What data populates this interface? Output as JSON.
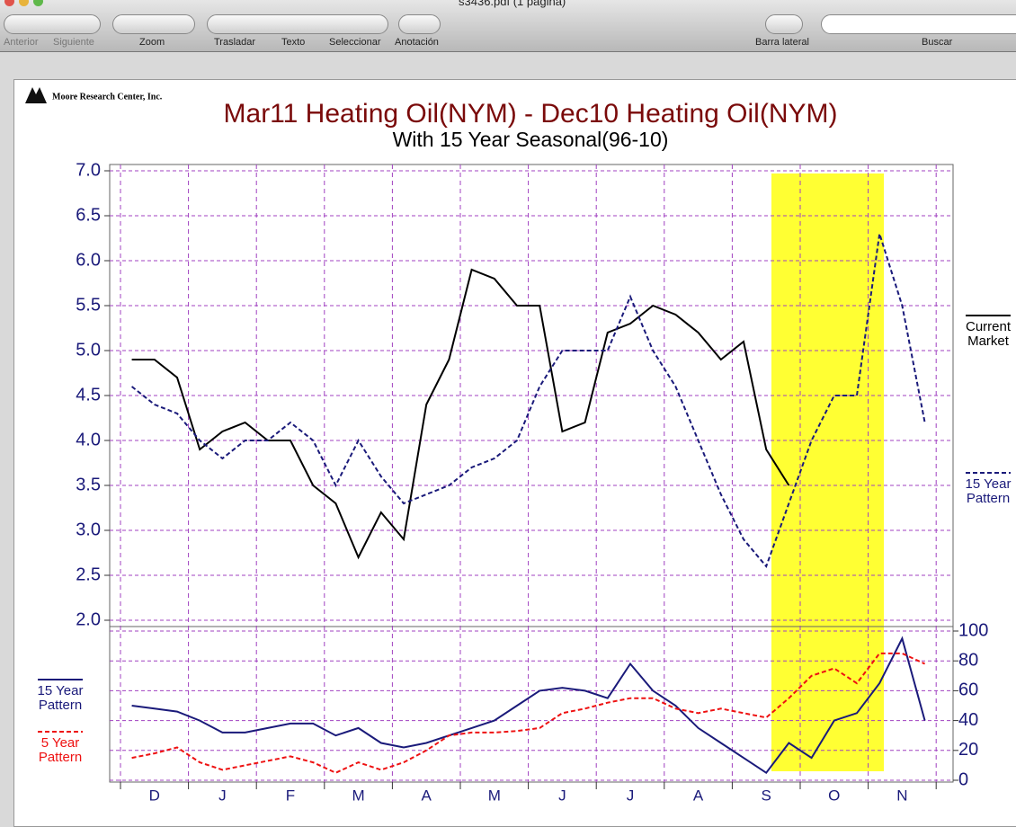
{
  "window": {
    "title": "s3436.pdf (1 página)",
    "toolbar": [
      "Anterior",
      "Siguiente",
      "Zoom",
      "Trasladar",
      "Texto",
      "Seleccionar",
      "Anotación",
      "Barra lateral",
      "Buscar"
    ]
  },
  "logo": "Moore Research Center, Inc.",
  "chart_data": [
    {
      "type": "line",
      "title": "Mar11 Heating Oil(NYM) - Dec10 Heating Oil(NYM)",
      "subtitle": "With 15 Year Seasonal(96-10)",
      "legend": "right",
      "grid": true,
      "ylim": [
        1.9,
        7.1
      ],
      "yticks": [
        {
          "value": 2,
          "label": "2.0"
        },
        2.5,
        {
          "value": 3,
          "label": "3.0"
        },
        3.5,
        {
          "value": 4,
          "label": "4.0"
        },
        4.5,
        {
          "value": 5,
          "label": "5.0"
        },
        5.5,
        {
          "value": 6,
          "label": "6.0"
        },
        6.5,
        {
          "value": 7,
          "label": "7.0"
        }
      ],
      "series": [
        {
          "name": "Current Market",
          "color": "#000000",
          "dash": false,
          "values": [
            4.9,
            4.9,
            4.7,
            3.9,
            4.1,
            4.2,
            4.0,
            4.0,
            3.5,
            3.3,
            2.7,
            3.2,
            2.9,
            4.4,
            4.9,
            5.9,
            5.8,
            5.5,
            5.5,
            4.1,
            4.2,
            5.2,
            5.3,
            5.5,
            5.4,
            5.2,
            4.9,
            5.1,
            3.9,
            3.5,
            null,
            null,
            null,
            null,
            null,
            null
          ]
        },
        {
          "name": "15 Year Pattern",
          "color": "#1a1a7a",
          "dash": true,
          "values": [
            4.6,
            4.4,
            4.3,
            4.0,
            3.8,
            4.0,
            4.0,
            4.2,
            4.0,
            3.5,
            4.0,
            3.6,
            3.3,
            3.4,
            3.5,
            3.7,
            3.8,
            4.0,
            4.6,
            5.0,
            5.0,
            5.0,
            5.6,
            5.0,
            4.6,
            4.0,
            3.4,
            2.9,
            2.6,
            3.3,
            4.0,
            4.5,
            4.5,
            6.3,
            5.5,
            4.2
          ]
        }
      ]
    },
    {
      "type": "line",
      "legend": "left",
      "grid": true,
      "categories": [
        null,
        "D",
        null,
        null,
        "J",
        null,
        null,
        "F",
        null,
        null,
        "M",
        null,
        null,
        "A",
        null,
        null,
        "M",
        null,
        null,
        "J",
        null,
        null,
        "J",
        null,
        null,
        "A",
        null,
        null,
        "S",
        null,
        null,
        "O",
        null,
        null,
        "N",
        null
      ],
      "ylim": [
        0,
        100
      ],
      "yticks": [
        0,
        20,
        40,
        60,
        80,
        100
      ],
      "series": [
        {
          "name": "15 Year Pattern",
          "color": "#1a1a7a",
          "dash": false,
          "values": [
            50,
            48,
            46,
            40,
            32,
            32,
            35,
            38,
            38,
            30,
            35,
            25,
            22,
            25,
            30,
            35,
            40,
            50,
            60,
            62,
            60,
            55,
            78,
            60,
            50,
            35,
            25,
            15,
            5,
            25,
            15,
            40,
            45,
            65,
            95,
            40
          ]
        },
        {
          "name": "5 Year Pattern",
          "color": "#ee1111",
          "dash": true,
          "values": [
            15,
            18,
            22,
            12,
            7,
            10,
            13,
            16,
            12,
            5,
            12,
            7,
            12,
            20,
            30,
            32,
            32,
            33,
            35,
            45,
            48,
            52,
            55,
            55,
            48,
            45,
            48,
            45,
            42,
            55,
            70,
            75,
            65,
            85,
            85,
            78
          ]
        }
      ]
    }
  ]
}
